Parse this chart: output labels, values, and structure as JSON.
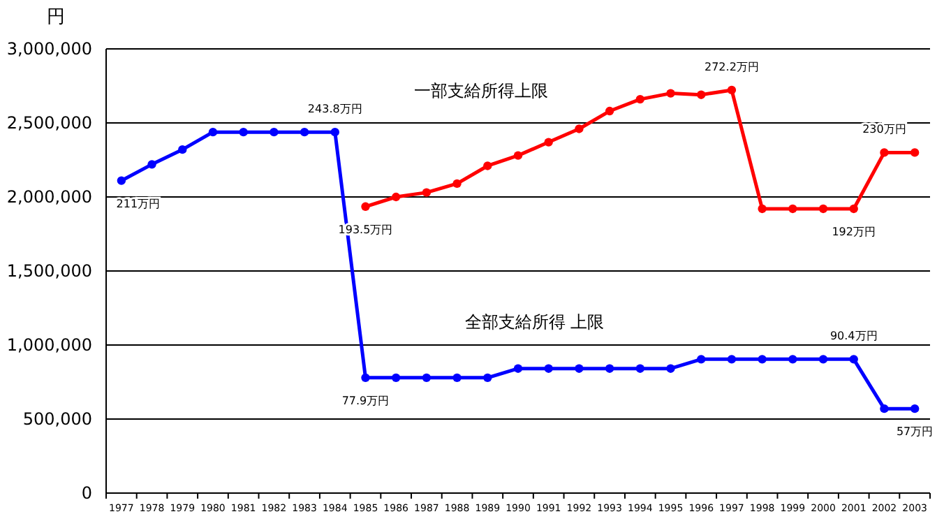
{
  "chart_data": {
    "type": "line",
    "ylabel": "円",
    "categories": [
      "1977",
      "1978",
      "1979",
      "1980",
      "1981",
      "1982",
      "1983",
      "1984",
      "1985",
      "1986",
      "1987",
      "1988",
      "1989",
      "1990",
      "1991",
      "1992",
      "1993",
      "1994",
      "1995",
      "1996",
      "1997",
      "1998",
      "1999",
      "2000",
      "2001",
      "2002",
      "2003"
    ],
    "series": [
      {
        "name": "全部支給所得 上限",
        "color": "#0000ff",
        "values": [
          2110000,
          2220000,
          2320000,
          2438000,
          2438000,
          2438000,
          2438000,
          2438000,
          779000,
          779000,
          779000,
          779000,
          779000,
          841000,
          841000,
          841000,
          841000,
          841000,
          841000,
          904000,
          904000,
          904000,
          904000,
          904000,
          904000,
          570000,
          570000
        ]
      },
      {
        "name": "一部支給所得上限",
        "color": "#ff0000",
        "values": [
          null,
          null,
          null,
          null,
          null,
          null,
          null,
          null,
          1935000,
          2000000,
          2030000,
          2090000,
          2210000,
          2280000,
          2370000,
          2460000,
          2580000,
          2660000,
          2700000,
          2690000,
          2722000,
          1920000,
          1920000,
          1920000,
          1920000,
          2300000,
          2300000
        ]
      }
    ],
    "ylim": [
      0,
      3000000
    ],
    "yticks": [
      0,
      {
        "value": 500000,
        "label": "500,000"
      },
      {
        "value": 1000000,
        "label": "1,000,000"
      },
      {
        "value": 1500000,
        "label": "1,500,000"
      },
      {
        "value": 2000000,
        "label": "2,000,000"
      },
      {
        "value": 2500000,
        "label": "2,500,000"
      },
      {
        "value": 3000000,
        "label": "3,000,000"
      }
    ],
    "grid": "y",
    "marker": "circle",
    "line_style": "solid",
    "legend": false,
    "annotations": [
      {
        "text": "211万円",
        "x": "1977",
        "y": 2110000
      },
      {
        "text": "243.8万円",
        "x": "1984",
        "y": 2438000
      },
      {
        "text": "77.9万円",
        "x": "1985",
        "y": 779000
      },
      {
        "text": "193.5万円",
        "x": "1985",
        "y": 1935000
      },
      {
        "text": "272.2万円",
        "x": "1997",
        "y": 2722000
      },
      {
        "text": "192万円",
        "x": "2001",
        "y": 1920000
      },
      {
        "text": "230万円",
        "x": "2002",
        "y": 2300000
      },
      {
        "text": "90.4万円",
        "x": "2001",
        "y": 904000
      },
      {
        "text": "57万円",
        "x": "2003",
        "y": 570000
      }
    ]
  }
}
